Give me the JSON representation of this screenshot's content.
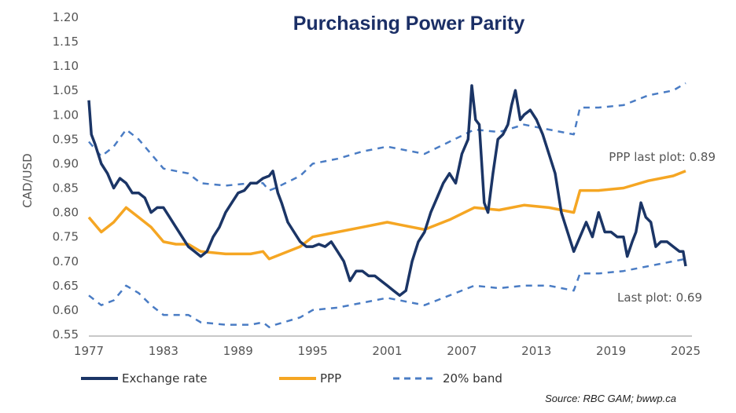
{
  "chart_data": {
    "type": "line",
    "title": "Purchasing Power Parity",
    "ylabel": "CAD/USD",
    "xlabel": "",
    "ylim": [
      0.55,
      1.2
    ],
    "xlim": [
      1977,
      2025
    ],
    "yticks": [
      "1.20",
      "1.15",
      "1.10",
      "1.05",
      "1.00",
      "0.95",
      "0.90",
      "0.85",
      "0.80",
      "0.75",
      "0.70",
      "0.65",
      "0.60",
      "0.55"
    ],
    "xticks": [
      "1977",
      "1983",
      "1989",
      "1995",
      "2001",
      "2007",
      "2013",
      "2019",
      "2025"
    ],
    "grid": false,
    "legend": {
      "placement": "bottom",
      "entries": [
        "Exchange rate",
        "PPP",
        "20% band"
      ]
    },
    "annotations": {
      "ppp_last": "PPP last plot: 0.89",
      "fx_last": "Last plot: 0.69"
    },
    "source": "Source: RBC GAM; bwwp.ca",
    "colors": {
      "exchange": "#1b3566",
      "ppp": "#f5a623",
      "band": "#4a7cc4",
      "title": "#1b2f66"
    },
    "series": [
      {
        "name": "Exchange rate",
        "x": [
          1977,
          1977.2,
          1977.5,
          1978,
          1978.5,
          1979,
          1979.5,
          1980,
          1980.5,
          1981,
          1981.5,
          1982,
          1982.5,
          1983,
          1983.5,
          1984,
          1984.5,
          1985,
          1985.5,
          1986,
          1986.5,
          1987,
          1987.5,
          1988,
          1988.5,
          1989,
          1989.5,
          1990,
          1990.5,
          1991,
          1991.5,
          1991.8,
          1992.2,
          1992.5,
          1993,
          1993.5,
          1994,
          1994.5,
          1995,
          1995.5,
          1996,
          1996.5,
          1997,
          1997.5,
          1998,
          1998.5,
          1999,
          1999.5,
          2000,
          2000.5,
          2001,
          2001.5,
          2002,
          2002.5,
          2003,
          2003.5,
          2004,
          2004.5,
          2005,
          2005.5,
          2006,
          2006.5,
          2007,
          2007.5,
          2007.8,
          2008.1,
          2008.4,
          2008.8,
          2009.1,
          2009.5,
          2009.9,
          2010.3,
          2010.7,
          2011.0,
          2011.3,
          2011.7,
          2012,
          2012.5,
          2013,
          2013.5,
          2014,
          2014.5,
          2015,
          2015.5,
          2016,
          2016.5,
          2017,
          2017.5,
          2018,
          2018.5,
          2019,
          2019.5,
          2020,
          2020.3,
          2020.7,
          2021,
          2021.4,
          2021.8,
          2022.2,
          2022.6,
          2023,
          2023.5,
          2024,
          2024.5,
          2024.8,
          2025
        ],
        "values": [
          1.03,
          0.96,
          0.94,
          0.9,
          0.88,
          0.85,
          0.87,
          0.86,
          0.84,
          0.84,
          0.83,
          0.8,
          0.81,
          0.81,
          0.79,
          0.77,
          0.75,
          0.73,
          0.72,
          0.71,
          0.72,
          0.75,
          0.77,
          0.8,
          0.82,
          0.84,
          0.845,
          0.86,
          0.86,
          0.87,
          0.875,
          0.885,
          0.84,
          0.82,
          0.78,
          0.76,
          0.74,
          0.73,
          0.73,
          0.735,
          0.73,
          0.74,
          0.72,
          0.7,
          0.66,
          0.68,
          0.68,
          0.67,
          0.67,
          0.66,
          0.65,
          0.64,
          0.63,
          0.64,
          0.7,
          0.74,
          0.76,
          0.8,
          0.83,
          0.86,
          0.88,
          0.86,
          0.92,
          0.95,
          1.06,
          0.99,
          0.98,
          0.82,
          0.8,
          0.88,
          0.95,
          0.96,
          0.98,
          1.02,
          1.05,
          0.99,
          1.0,
          1.01,
          0.99,
          0.96,
          0.92,
          0.88,
          0.8,
          0.76,
          0.72,
          0.75,
          0.78,
          0.75,
          0.8,
          0.76,
          0.76,
          0.75,
          0.75,
          0.71,
          0.74,
          0.76,
          0.82,
          0.79,
          0.78,
          0.73,
          0.74,
          0.74,
          0.73,
          0.72,
          0.72,
          0.69
        ]
      },
      {
        "name": "PPP",
        "x": [
          1977,
          1978,
          1979,
          1980,
          1981,
          1982,
          1983,
          1984,
          1985,
          1986,
          1988,
          1990,
          1991,
          1991.5,
          1992,
          1994,
          1995,
          1997,
          1999,
          2001,
          2002,
          2004,
          2006,
          2008,
          2010,
          2012,
          2014,
          2016,
          2016.5,
          2018,
          2020,
          2022,
          2024,
          2025
        ],
        "values": [
          0.79,
          0.76,
          0.78,
          0.81,
          0.79,
          0.77,
          0.74,
          0.735,
          0.735,
          0.72,
          0.715,
          0.715,
          0.72,
          0.705,
          0.71,
          0.73,
          0.75,
          0.76,
          0.77,
          0.78,
          0.775,
          0.765,
          0.785,
          0.81,
          0.805,
          0.815,
          0.81,
          0.8,
          0.845,
          0.845,
          0.85,
          0.865,
          0.875,
          0.885
        ]
      },
      {
        "name": "20% band upper",
        "x": [
          1977,
          1978,
          1979,
          1980,
          1981,
          1982,
          1983,
          1984,
          1985,
          1986,
          1988,
          1990,
          1991,
          1991.5,
          1992,
          1994,
          1995,
          1997,
          1999,
          2001,
          2002,
          2004,
          2006,
          2008,
          2010,
          2012,
          2014,
          2016,
          2016.5,
          2018,
          2020,
          2022,
          2024,
          2025
        ],
        "values": [
          0.945,
          0.915,
          0.935,
          0.97,
          0.95,
          0.92,
          0.89,
          0.885,
          0.88,
          0.86,
          0.855,
          0.86,
          0.86,
          0.845,
          0.85,
          0.875,
          0.9,
          0.91,
          0.925,
          0.935,
          0.93,
          0.92,
          0.945,
          0.97,
          0.965,
          0.98,
          0.97,
          0.96,
          1.015,
          1.015,
          1.02,
          1.04,
          1.05,
          1.065
        ]
      },
      {
        "name": "20% band lower",
        "x": [
          1977,
          1978,
          1979,
          1980,
          1981,
          1982,
          1983,
          1984,
          1985,
          1986,
          1988,
          1990,
          1991,
          1991.5,
          1992,
          1994,
          1995,
          1997,
          1999,
          2001,
          2002,
          2004,
          2006,
          2008,
          2010,
          2012,
          2014,
          2016,
          2016.5,
          2018,
          2020,
          2022,
          2024,
          2025
        ],
        "values": [
          0.63,
          0.61,
          0.62,
          0.65,
          0.635,
          0.61,
          0.59,
          0.59,
          0.59,
          0.575,
          0.57,
          0.57,
          0.575,
          0.565,
          0.57,
          0.585,
          0.6,
          0.605,
          0.615,
          0.625,
          0.62,
          0.61,
          0.63,
          0.65,
          0.645,
          0.65,
          0.65,
          0.64,
          0.675,
          0.675,
          0.68,
          0.69,
          0.7,
          0.705
        ]
      }
    ]
  }
}
